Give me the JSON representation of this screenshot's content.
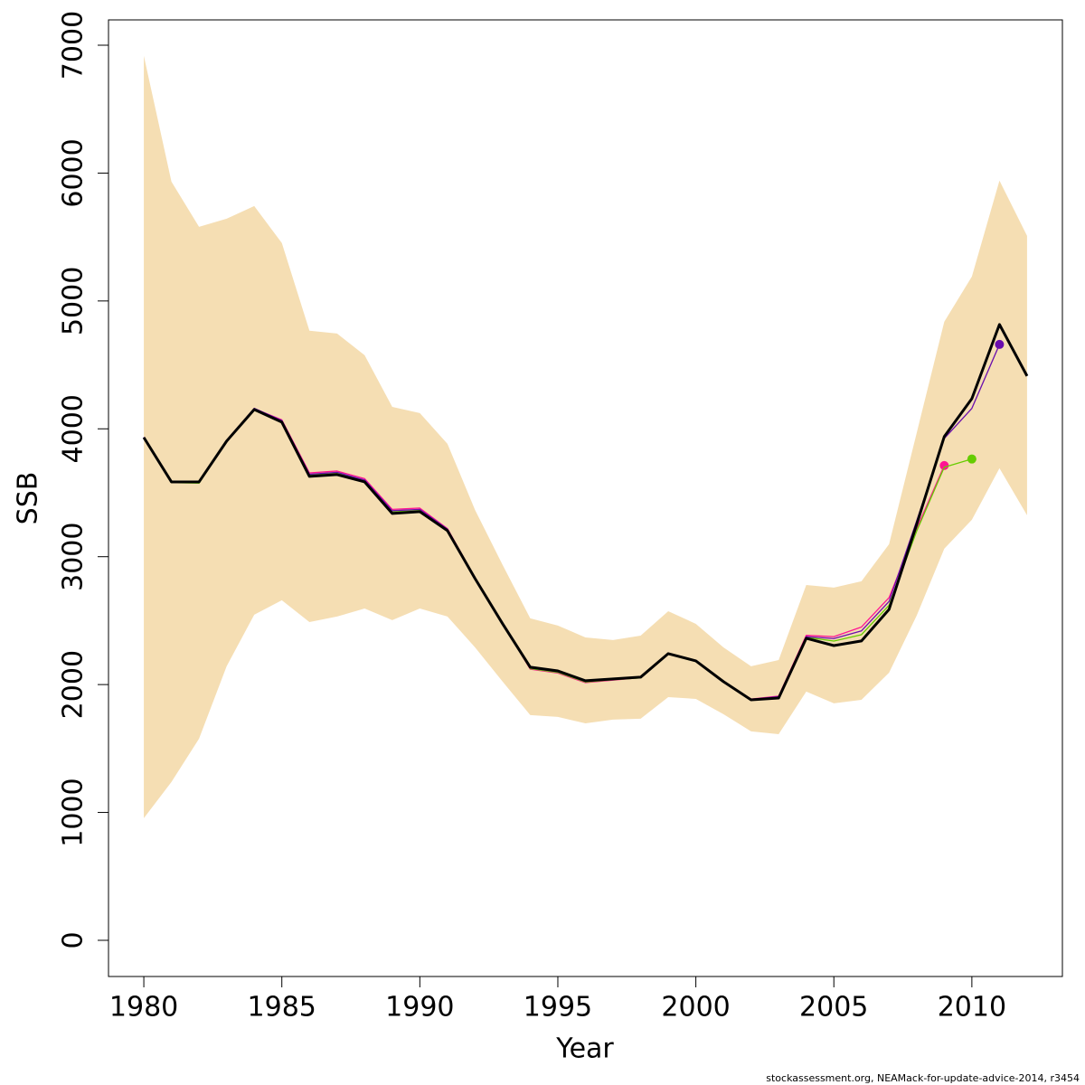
{
  "chart_data": {
    "type": "line",
    "xlabel": "Year",
    "ylabel": "SSB",
    "footer": "stockassessment.org, NEAMack-for-update-advice-2014, r3454",
    "x": [
      1980,
      1981,
      1982,
      1983,
      1984,
      1985,
      1986,
      1987,
      1988,
      1989,
      1990,
      1991,
      1992,
      1993,
      1994,
      1995,
      1996,
      1997,
      1998,
      1999,
      2000,
      2001,
      2002,
      2003,
      2004,
      2005,
      2006,
      2007,
      2008,
      2009,
      2010,
      2011,
      2012
    ],
    "xlim": [
      1978.72,
      2013.28
    ],
    "ylim": [
      -283,
      7198
    ],
    "xticks": [
      1980,
      1985,
      1990,
      1995,
      2000,
      2005,
      2010
    ],
    "yticks": [
      0,
      1000,
      2000,
      3000,
      4000,
      5000,
      6000,
      7000
    ],
    "band": {
      "color": "#f5deb3",
      "upper": [
        6917,
        5933,
        5580,
        5643,
        5742,
        5453,
        4767,
        4745,
        4576,
        4172,
        4123,
        3883,
        3366,
        2935,
        2518,
        2461,
        2369,
        2348,
        2383,
        2574,
        2475,
        2291,
        2143,
        2192,
        2779,
        2758,
        2808,
        3098,
        3967,
        4837,
        5191,
        5941,
        5509
      ],
      "lower": [
        955,
        1238,
        1577,
        2143,
        2546,
        2659,
        2489,
        2532,
        2595,
        2504,
        2595,
        2532,
        2291,
        2023,
        1761,
        1747,
        1697,
        1726,
        1733,
        1902,
        1888,
        1768,
        1634,
        1612,
        1945,
        1853,
        1881,
        2093,
        2539,
        3062,
        3289,
        3692,
        3324
      ]
    },
    "series": [
      {
        "color": "#ff1493",
        "values": [
          3930,
          3590,
          3590,
          3910,
          4158,
          4070,
          3655,
          3670,
          3610,
          3370,
          3380,
          3220,
          2835,
          2478,
          2120,
          2090,
          2015,
          2035,
          2054,
          2240,
          2183,
          2022,
          1887,
          1910,
          2385,
          2375,
          2450,
          2680,
          3220,
          3713,
          null,
          null,
          null
        ]
      },
      {
        "color": "#66cc00",
        "values": [
          3925,
          3580,
          3575,
          3900,
          4145,
          4055,
          3640,
          3655,
          3590,
          3350,
          3362,
          3210,
          2832,
          2476,
          2125,
          2095,
          2020,
          2038,
          2052,
          2238,
          2180,
          2020,
          1880,
          1900,
          2370,
          2340,
          2390,
          2620,
          3200,
          3700,
          3764,
          null,
          null
        ]
      },
      {
        "color": "#6a0dad",
        "values": [
          3935,
          3590,
          3590,
          3910,
          4160,
          4065,
          3645,
          3660,
          3600,
          3360,
          3370,
          3215,
          2835,
          2478,
          2130,
          2100,
          2025,
          2040,
          2055,
          2240,
          2182,
          2022,
          1885,
          1905,
          2375,
          2360,
          2420,
          2650,
          3280,
          3925,
          4160,
          4660,
          null
        ]
      },
      {
        "color": "#000000",
        "values": [
          3932,
          3585,
          3585,
          3904,
          4151,
          4052,
          3628,
          3642,
          3585,
          3338,
          3352,
          3204,
          2829,
          2475,
          2136,
          2107,
          2030,
          2044,
          2058,
          2242,
          2185,
          2023,
          1881,
          1895,
          2362,
          2305,
          2341,
          2588,
          3253,
          3939,
          4236,
          4816,
          4413
        ]
      }
    ]
  }
}
